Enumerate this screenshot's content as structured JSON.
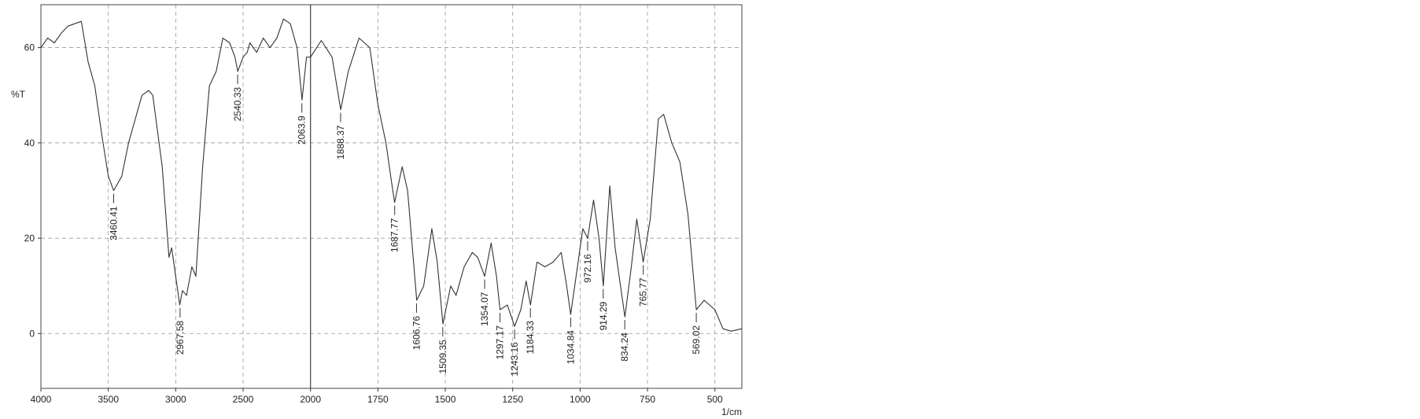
{
  "chart_data": {
    "type": "line",
    "y_label": "%T",
    "x_label": "1/cm",
    "color": "#333333",
    "xlim": [
      4000,
      400
    ],
    "ylim": [
      -11.5,
      69
    ],
    "x_scale_break": {
      "at": 2000,
      "factor": 2
    },
    "xticks": [
      4000,
      3500,
      3000,
      2500,
      2000,
      1750,
      1500,
      1250,
      1000,
      750,
      500
    ],
    "yticks": [
      0,
      20,
      40,
      60
    ],
    "grid": true,
    "x": [
      4000,
      3950,
      3900,
      3850,
      3800,
      3750,
      3700,
      3650,
      3600,
      3550,
      3500,
      3460,
      3400,
      3350,
      3300,
      3250,
      3200,
      3170,
      3100,
      3050,
      3030,
      3000,
      2970,
      2950,
      2920,
      2880,
      2850,
      2800,
      2750,
      2700,
      2650,
      2600,
      2560,
      2540,
      2500,
      2470,
      2450,
      2400,
      2350,
      2300,
      2250,
      2200,
      2150,
      2100,
      2063,
      2030,
      2000,
      1960,
      1920,
      1888,
      1860,
      1820,
      1780,
      1750,
      1720,
      1700,
      1688,
      1660,
      1640,
      1606,
      1580,
      1550,
      1530,
      1509,
      1480,
      1460,
      1430,
      1400,
      1380,
      1354,
      1330,
      1310,
      1297,
      1270,
      1243,
      1220,
      1200,
      1184,
      1160,
      1130,
      1100,
      1070,
      1050,
      1035,
      1010,
      990,
      972,
      950,
      930,
      914,
      890,
      870,
      834,
      810,
      790,
      766,
      740,
      710,
      690,
      660,
      630,
      600,
      569,
      540,
      500,
      470,
      440,
      400
    ],
    "values": [
      60,
      62,
      61,
      63,
      64.5,
      65,
      65.5,
      57,
      52,
      42,
      33,
      30,
      33,
      40,
      45,
      50,
      51,
      50,
      35,
      16,
      18,
      12,
      6,
      9,
      8,
      14,
      12,
      35,
      52,
      55,
      62,
      61,
      58,
      55,
      58,
      59,
      61,
      59,
      62,
      60,
      62,
      66,
      65,
      60,
      49,
      58,
      58,
      61.5,
      58,
      47,
      55,
      62,
      60,
      48,
      40,
      32,
      27.5,
      35,
      30,
      7,
      10,
      22,
      15,
      2,
      10,
      8,
      14,
      17,
      16,
      12,
      19,
      12,
      5,
      6,
      1.5,
      5,
      11,
      6,
      15,
      14,
      15,
      17,
      10,
      4,
      14,
      22,
      20,
      28,
      20,
      10,
      31,
      18,
      3.5,
      14,
      24,
      15,
      24,
      45,
      46,
      40,
      36,
      25,
      5,
      7,
      5,
      1,
      0.5,
      1
    ],
    "peaks": [
      {
        "x": 3460.41,
        "y": 30
      },
      {
        "x": 2967.58,
        "y": 6
      },
      {
        "x": 2540.33,
        "y": 55
      },
      {
        "x": 2063.9,
        "y": 49
      },
      {
        "x": 1888.37,
        "y": 47
      },
      {
        "x": 1687.77,
        "y": 27.5
      },
      {
        "x": 1606.76,
        "y": 7
      },
      {
        "x": 1509.35,
        "y": 2
      },
      {
        "x": 1354.07,
        "y": 12
      },
      {
        "x": 1297.17,
        "y": 5
      },
      {
        "x": 1243.16,
        "y": 1.5
      },
      {
        "x": 1184.33,
        "y": 6
      },
      {
        "x": 1034.84,
        "y": 4
      },
      {
        "x": 972.16,
        "y": 20
      },
      {
        "x": 914.29,
        "y": 10
      },
      {
        "x": 834.24,
        "y": 3.5
      },
      {
        "x": 765.77,
        "y": 15
      },
      {
        "x": 569.02,
        "y": 5
      }
    ]
  }
}
